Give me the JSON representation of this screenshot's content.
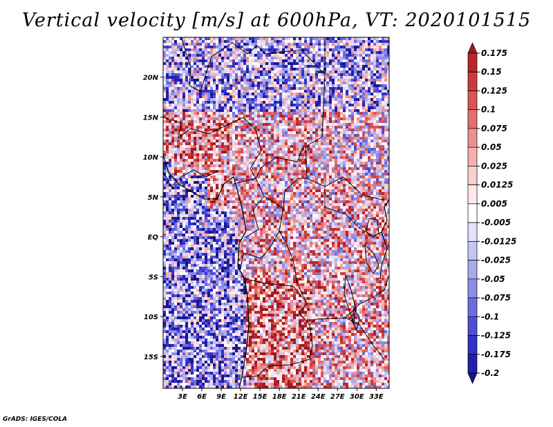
{
  "title": "Vertical velocity [m/s] at 600hPa, VT: 2020101515",
  "credit": "GrADS: IGES/COLA",
  "map": {
    "variable": "Vertical velocity",
    "units": "m/s",
    "level": "600hPa",
    "valid_time": "2020101515",
    "lon_range": [
      0,
      35
    ],
    "lat_range": [
      -19,
      25
    ],
    "lat_ticks": [
      {
        "value": 20,
        "label": "20N"
      },
      {
        "value": 15,
        "label": "15N"
      },
      {
        "value": 10,
        "label": "10N"
      },
      {
        "value": 5,
        "label": "5N"
      },
      {
        "value": 0,
        "label": "EQ"
      },
      {
        "value": -5,
        "label": "5S"
      },
      {
        "value": -10,
        "label": "10S"
      },
      {
        "value": -15,
        "label": "15S"
      }
    ],
    "lon_ticks": [
      {
        "value": 3,
        "label": "3E"
      },
      {
        "value": 6,
        "label": "6E"
      },
      {
        "value": 9,
        "label": "9E"
      },
      {
        "value": 12,
        "label": "12E"
      },
      {
        "value": 15,
        "label": "15E"
      },
      {
        "value": 18,
        "label": "18E"
      },
      {
        "value": 21,
        "label": "21E"
      },
      {
        "value": 24,
        "label": "24E"
      },
      {
        "value": 27,
        "label": "27E"
      },
      {
        "value": 30,
        "label": "30E"
      },
      {
        "value": 33,
        "label": "33E"
      }
    ]
  },
  "colorbar": {
    "labels": [
      "0.175",
      "0.15",
      "0.125",
      "0.1",
      "0.075",
      "0.05",
      "0.025",
      "0.0125",
      "0.005",
      "-0.005",
      "-0.0125",
      "-0.025",
      "-0.05",
      "-0.075",
      "-0.1",
      "-0.125",
      "-0.175",
      "-0.2"
    ],
    "colors": [
      "#a11a1c",
      "#b92528",
      "#cc3a3a",
      "#d95555",
      "#e26f6f",
      "#ec8f8f",
      "#f4b0b0",
      "#f9d0d0",
      "#fde9e9",
      "#ffffff",
      "#e2e2fb",
      "#c6c6f6",
      "#a9a9f0",
      "#8b8be8",
      "#6c6cdf",
      "#4e4ed4",
      "#3232c5",
      "#2020ac",
      "#16168f"
    ]
  }
}
